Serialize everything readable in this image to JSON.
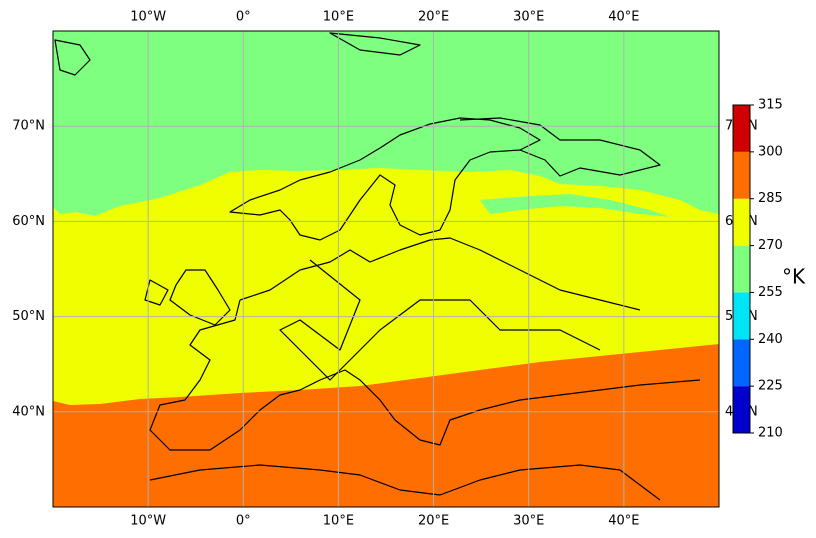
{
  "chart_data": {
    "type": "contourf",
    "xlim": [
      -20,
      50
    ],
    "ylim": [
      30,
      80
    ],
    "xticks": [
      {
        "value": -10,
        "label": "10°W"
      },
      {
        "value": 0,
        "label": "0°"
      },
      {
        "value": 10,
        "label": "10°E"
      },
      {
        "value": 20,
        "label": "20°E"
      },
      {
        "value": 30,
        "label": "30°E"
      },
      {
        "value": 40,
        "label": "40°E"
      }
    ],
    "yticks": [
      {
        "value": 40,
        "label": "40°N"
      },
      {
        "value": 50,
        "label": "50°N"
      },
      {
        "value": 60,
        "label": "60°N"
      },
      {
        "value": 70,
        "label": "70°N"
      }
    ],
    "grid": true,
    "colorbar": {
      "label": "°K",
      "levels": [
        210,
        225,
        240,
        255,
        270,
        285,
        300,
        315
      ],
      "colors": [
        "#0000cd",
        "#0066ff",
        "#00e5f5",
        "#7fff7f",
        "#f0ff00",
        "#ff6e00",
        "#d00000"
      ]
    }
  }
}
